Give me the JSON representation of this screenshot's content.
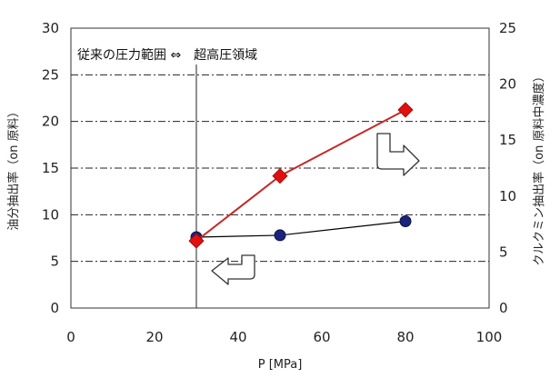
{
  "chart_data": {
    "type": "line",
    "xlabel": "P [MPa]",
    "ylabel_left": "油分抽出率（on 原料）",
    "ylabel_right": "クルクミン抽出率（on 原料中濃度）",
    "xlim": [
      0,
      100
    ],
    "ylim_left": [
      0,
      30
    ],
    "ylim_right": [
      0,
      25
    ],
    "x_ticks": [
      "0",
      "20",
      "40",
      "60",
      "80",
      "100"
    ],
    "y_ticks_left": [
      "0",
      "5",
      "10",
      "15",
      "20",
      "25",
      "30"
    ],
    "y_ticks_right": [
      "0",
      "5",
      "10",
      "15",
      "20",
      "25"
    ],
    "grid": "horizontal dash-dot",
    "annotation": "従来の圧力範囲 ⇔　超高圧領域",
    "divider_x": 30,
    "series": [
      {
        "axis": "left",
        "marker": "circle",
        "color": "#1a237e",
        "line_color": "#000000",
        "x": [
          30,
          50,
          80
        ],
        "y": [
          7.6,
          7.8,
          9.3
        ]
      },
      {
        "axis": "right",
        "marker": "diamond",
        "color": "#e01010",
        "line_color": "#c62828",
        "x": [
          30,
          50,
          80
        ],
        "y": [
          6.0,
          11.8,
          17.7
        ]
      }
    ],
    "arrows": [
      {
        "direction": "left",
        "points_to_axis": "left"
      },
      {
        "direction": "right",
        "points_to_axis": "right"
      }
    ]
  }
}
